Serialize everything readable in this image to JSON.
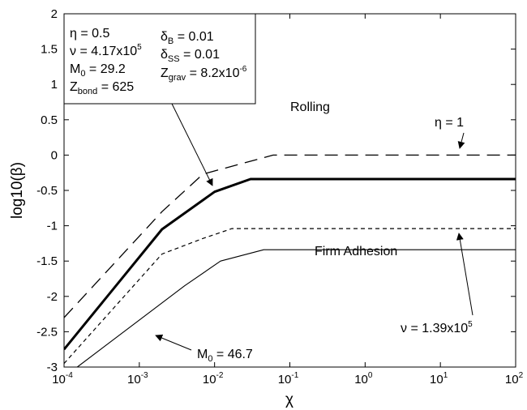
{
  "chart_data": {
    "type": "line",
    "xscale": "log",
    "xlim": [
      0.0001,
      100
    ],
    "ylim": [
      -3,
      2
    ],
    "grid": false,
    "xlabel": "χ",
    "ylabel": "log10(β)",
    "xticks": [
      {
        "value": 0.0001,
        "base": "10",
        "exp": "-4"
      },
      {
        "value": 0.001,
        "base": "10",
        "exp": "-3"
      },
      {
        "value": 0.01,
        "base": "10",
        "exp": "-2"
      },
      {
        "value": 0.1,
        "base": "10",
        "exp": "-1"
      },
      {
        "value": 1,
        "base": "10",
        "exp": "0"
      },
      {
        "value": 10,
        "base": "10",
        "exp": "1"
      },
      {
        "value": 100,
        "base": "10",
        "exp": "2"
      }
    ],
    "yticks": [
      {
        "value": 2,
        "label": "2"
      },
      {
        "value": 1.5,
        "label": "1.5"
      },
      {
        "value": 1,
        "label": "1"
      },
      {
        "value": 0.5,
        "label": "0.5"
      },
      {
        "value": 0,
        "label": "0"
      },
      {
        "value": -0.5,
        "label": "-0.5"
      },
      {
        "value": -1,
        "label": "-1"
      },
      {
        "value": -1.5,
        "label": "-1.5"
      },
      {
        "value": -2,
        "label": "-2"
      },
      {
        "value": -2.5,
        "label": "-2.5"
      },
      {
        "value": -3,
        "label": "-3"
      }
    ],
    "series": [
      {
        "style": "long-dash",
        "stroke_width": 1.3,
        "x": [
          0.0001,
          0.002,
          0.007,
          0.06,
          100
        ],
        "y": [
          -2.3,
          -0.8,
          -0.27,
          0,
          0
        ]
      },
      {
        "style": "solid-thick",
        "stroke_width": 3,
        "x": [
          0.0001,
          0.002,
          0.01,
          0.03,
          100
        ],
        "y": [
          -2.75,
          -1.05,
          -0.52,
          -0.34,
          -0.34
        ]
      },
      {
        "style": "short-dash",
        "stroke_width": 1.2,
        "x": [
          0.0001,
          0.002,
          0.007,
          0.017,
          100
        ],
        "y": [
          -2.95,
          -1.4,
          -1.18,
          -1.04,
          -1.04
        ]
      },
      {
        "style": "solid-thin",
        "stroke_width": 1.1,
        "x": [
          0.00015,
          0.004,
          0.012,
          0.045,
          100
        ],
        "y": [
          -3,
          -1.85,
          -1.5,
          -1.34,
          -1.34
        ]
      }
    ],
    "annotations": {
      "rolling": "Rolling",
      "firm_adhesion": "Firm Adhesion",
      "eta1": {
        "sym": "η",
        "rest": " = 1"
      },
      "nu_ann": {
        "pre": "ν = 1.39x10",
        "sup": "5"
      },
      "m0_ann": {
        "pre": "M",
        "sub": "0",
        "post": " = 46.7"
      }
    },
    "param_box": {
      "eta": "η = 0.5",
      "nu": {
        "pre": "ν = 4.17x10",
        "sup": "5"
      },
      "m0": {
        "pre": "M",
        "sub": "0",
        "post": " = 29.2"
      },
      "zbond": {
        "pre": "Z",
        "sub": "bond",
        "post": " = 625"
      },
      "dB": {
        "pre": "δ",
        "sub": "B",
        "post": " = 0.01"
      },
      "dSS": {
        "pre": "δ",
        "sub": "SS",
        "post": " = 0.01"
      },
      "zgrav": {
        "pre": "Z",
        "sub": "grav",
        "post": " = 8.2x10",
        "sup": "-6"
      }
    }
  }
}
